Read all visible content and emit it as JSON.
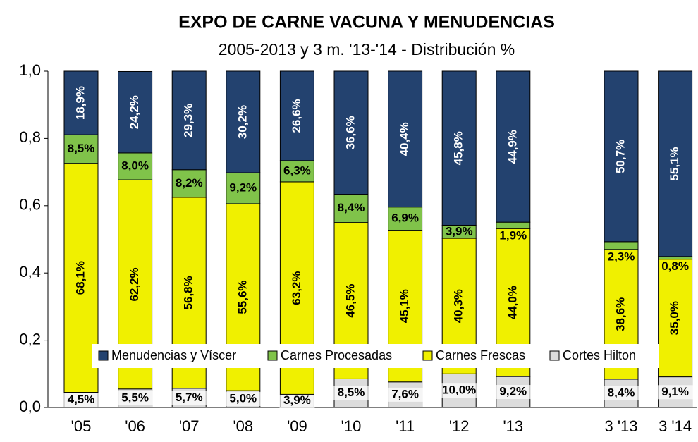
{
  "chart_data": {
    "type": "stacked_bar",
    "title": "EXPO DE CARNE VACUNA Y MENUDENCIAS",
    "subtitle": "2005-2013 y 3 m. '13-'14 - Distribución %",
    "categories": [
      "'05",
      "'06",
      "'07",
      "'08",
      "'09",
      "'10",
      "'11",
      "'12",
      "'13",
      null,
      "3 '13",
      "3 '14"
    ],
    "series": [
      {
        "name": "Cortes Hilton",
        "color": "#dcdcdc",
        "values": [
          0.045,
          0.055,
          0.057,
          0.05,
          0.039,
          0.085,
          0.076,
          0.1,
          0.092,
          null,
          0.084,
          0.091
        ],
        "value_labels": [
          "4,5%",
          "5,5%",
          "5,7%",
          "5,0%",
          "3,9%",
          "8,5%",
          "7,6%",
          "10,0%",
          "9,2%",
          null,
          "8,4%",
          "9,1%"
        ]
      },
      {
        "name": "Carnes Frescas",
        "color": "#f0f000",
        "values": [
          0.681,
          0.622,
          0.568,
          0.556,
          0.632,
          0.465,
          0.451,
          0.403,
          0.44,
          null,
          0.386,
          0.35
        ],
        "value_labels": [
          "68,1%",
          "62,2%",
          "56,8%",
          "55,6%",
          "63,2%",
          "46,5%",
          "45,1%",
          "40,3%",
          "44,0%",
          null,
          "38,6%",
          "35,0%"
        ]
      },
      {
        "name": "Carnes Procesadas",
        "color": "#80c34a",
        "values": [
          0.085,
          0.08,
          0.082,
          0.092,
          0.063,
          0.084,
          0.069,
          0.039,
          0.019,
          null,
          0.023,
          0.008
        ],
        "value_labels": [
          "8,5%",
          "8,0%",
          "8,2%",
          "9,2%",
          "6,3%",
          "8,4%",
          "6,9%",
          "3,9%",
          "1,9%",
          null,
          "2,3%",
          "0,8%"
        ]
      },
      {
        "name": "Menudencias y Víscer",
        "color": "#23426f",
        "values": [
          0.189,
          0.242,
          0.293,
          0.302,
          0.266,
          0.366,
          0.404,
          0.458,
          0.449,
          null,
          0.507,
          0.551
        ],
        "value_labels": [
          "18,9%",
          "24,2%",
          "29,3%",
          "30,2%",
          "26,6%",
          "36,6%",
          "40,4%",
          "45,8%",
          "44,9%",
          null,
          "50,7%",
          "55,1%"
        ]
      }
    ],
    "ylim": [
      0,
      1
    ],
    "yticks": [
      {
        "value": 0,
        "label": "0,0"
      },
      {
        "value": 0.2,
        "label": "0,2"
      },
      {
        "value": 0.4,
        "label": "0,4"
      },
      {
        "value": 0.6,
        "label": "0,6"
      },
      {
        "value": 0.8,
        "label": "0,8"
      },
      {
        "value": 1,
        "label": "1,0"
      }
    ],
    "legend": "bottom"
  }
}
